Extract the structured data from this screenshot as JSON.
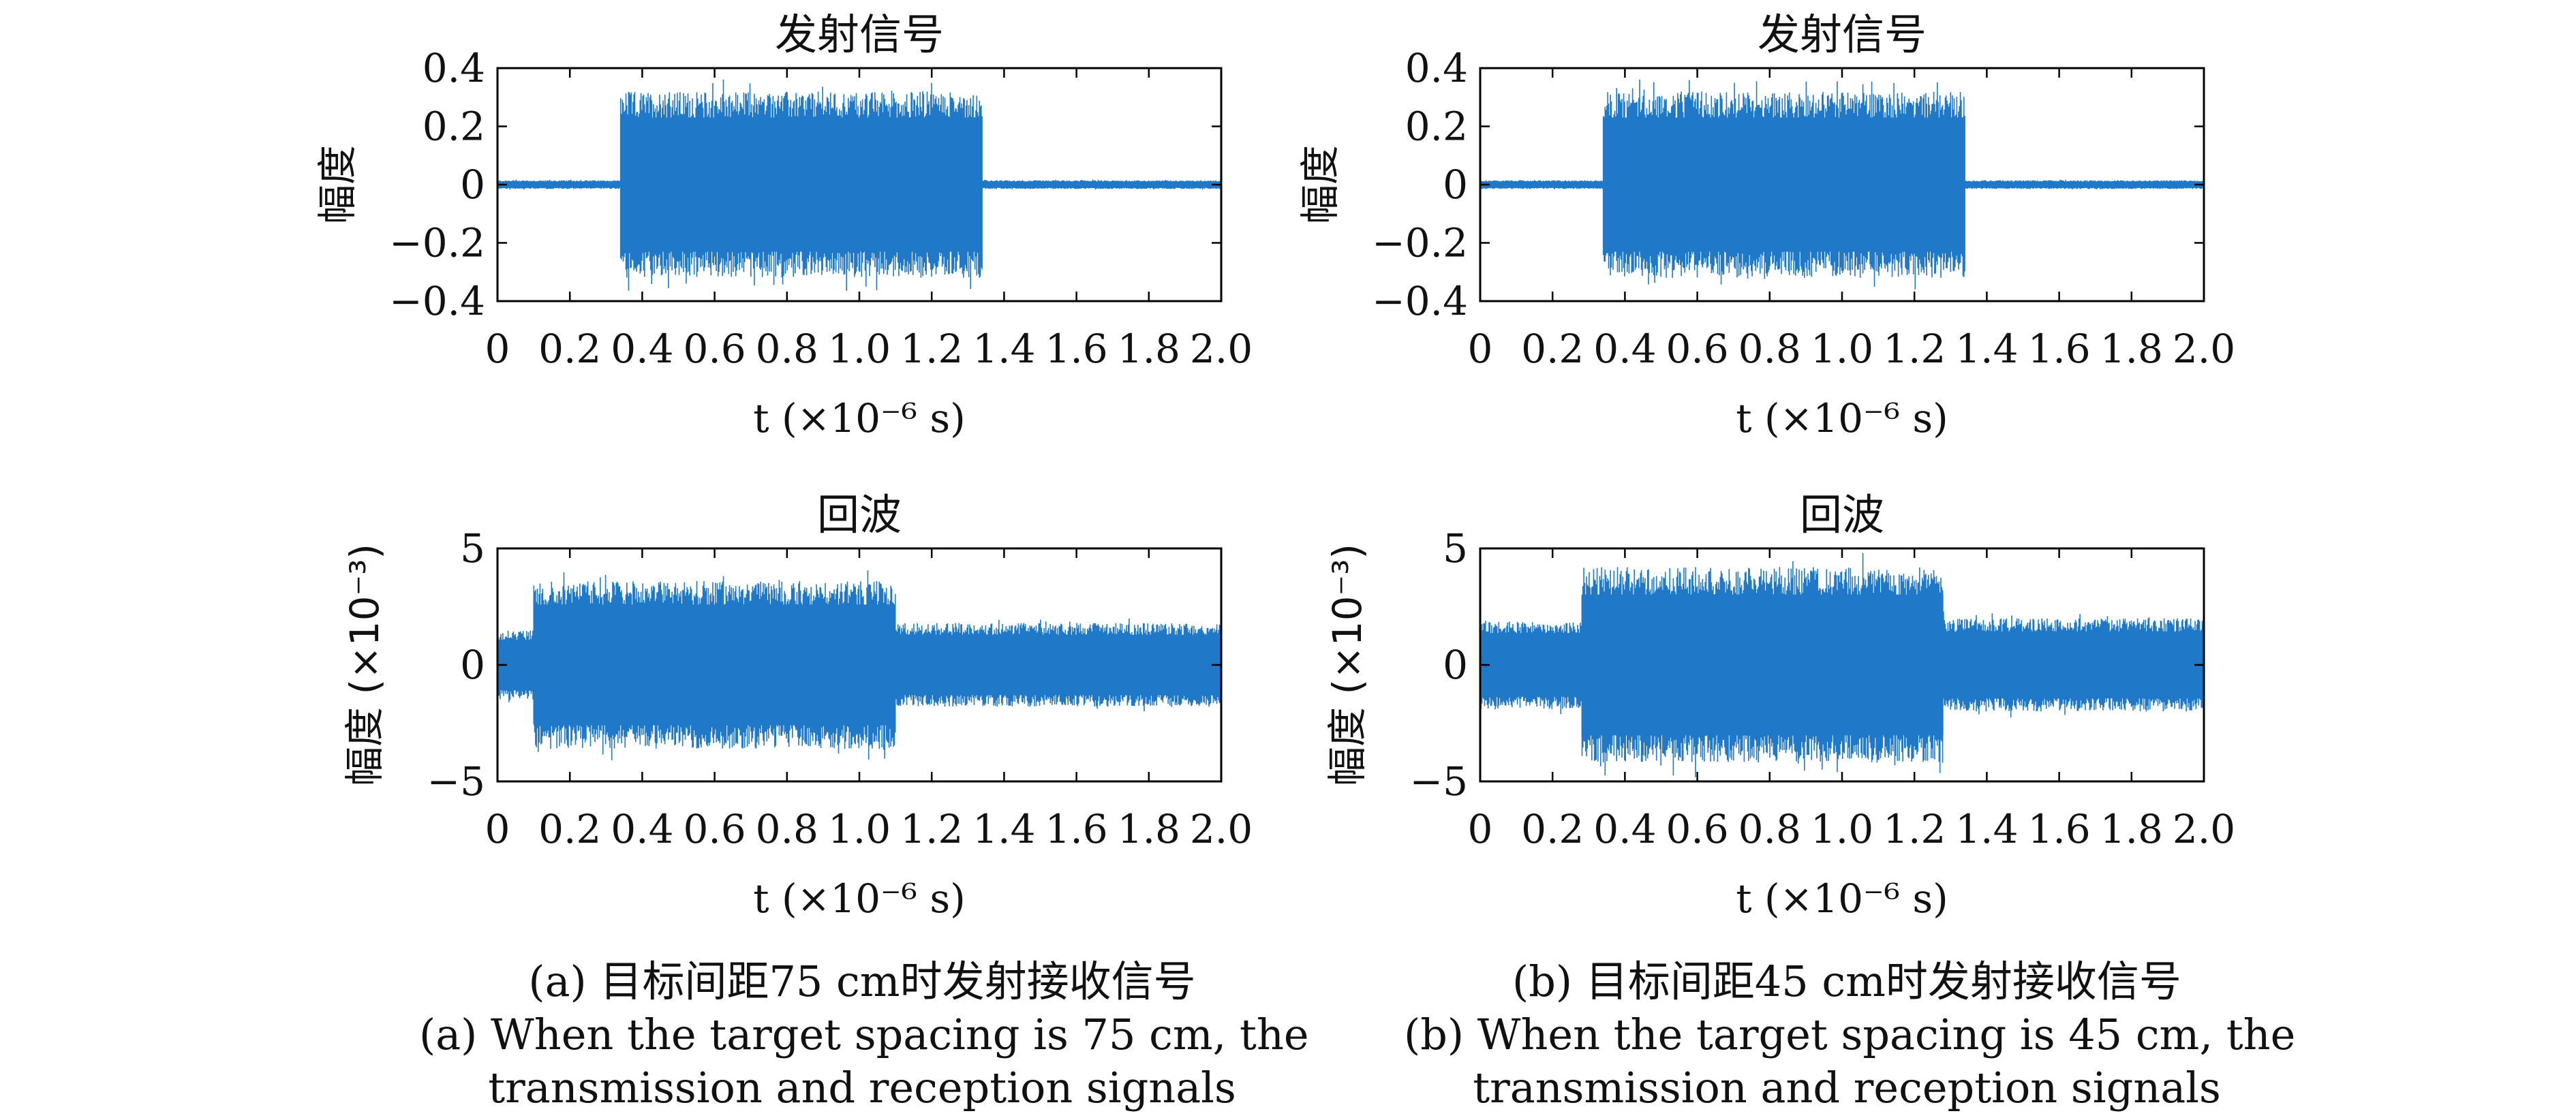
{
  "colors": {
    "signal": "#1f78c8",
    "axis": "#000000",
    "text": "#111111",
    "background": "#ffffff"
  },
  "chart_data": [
    {
      "panel": "a",
      "row": "top",
      "type": "line",
      "title": "发射信号",
      "ylabel": "幅度",
      "xlabel": "t (×10⁻⁶ s)",
      "xlim": [
        0,
        2.0
      ],
      "ylim": [
        -0.4,
        0.4
      ],
      "xticks": [
        "0",
        "0.2",
        "0.4",
        "0.6",
        "0.8",
        "1.0",
        "1.2",
        "1.4",
        "1.6",
        "1.8",
        "2.0"
      ],
      "yticks": [
        "0.4",
        "0.2",
        "0",
        "−0.2",
        "−0.4"
      ],
      "series": [
        {
          "envelope": [
            {
              "t_start": 0.0,
              "t_end": 0.34,
              "amplitude": 0.015
            },
            {
              "t_start": 0.34,
              "t_end": 1.34,
              "amplitude": 0.32
            },
            {
              "t_start": 1.34,
              "t_end": 2.0,
              "amplitude": 0.015
            }
          ]
        }
      ]
    },
    {
      "panel": "b",
      "row": "top",
      "type": "line",
      "title": "发射信号",
      "ylabel": "幅度",
      "xlabel": "t (×10⁻⁶ s)",
      "xlim": [
        0,
        2.0
      ],
      "ylim": [
        -0.4,
        0.4
      ],
      "xticks": [
        "0",
        "0.2",
        "0.4",
        "0.6",
        "0.8",
        "1.0",
        "1.2",
        "1.4",
        "1.6",
        "1.8",
        "2.0"
      ],
      "yticks": [
        "0.4",
        "0.2",
        "0",
        "−0.2",
        "−0.4"
      ],
      "series": [
        {
          "envelope": [
            {
              "t_start": 0.0,
              "t_end": 0.34,
              "amplitude": 0.015
            },
            {
              "t_start": 0.34,
              "t_end": 1.34,
              "amplitude": 0.32
            },
            {
              "t_start": 1.34,
              "t_end": 2.0,
              "amplitude": 0.015
            }
          ]
        }
      ]
    },
    {
      "panel": "a",
      "row": "bottom",
      "type": "line",
      "title": "回波",
      "ylabel": "幅度 (×10⁻³)",
      "xlabel": "t (×10⁻⁶ s)",
      "xlim": [
        0,
        2.0
      ],
      "ylim": [
        -5,
        5
      ],
      "xticks": [
        "0",
        "0.2",
        "0.4",
        "0.6",
        "0.8",
        "1.0",
        "1.2",
        "1.4",
        "1.6",
        "1.8",
        "2.0"
      ],
      "yticks": [
        "5",
        "0",
        "−5"
      ],
      "series": [
        {
          "envelope": [
            {
              "t_start": 0.0,
              "t_end": 0.1,
              "amplitude": 1.5
            },
            {
              "t_start": 0.1,
              "t_end": 1.1,
              "amplitude": 3.6
            },
            {
              "t_start": 1.1,
              "t_end": 2.0,
              "amplitude": 1.8
            }
          ]
        }
      ]
    },
    {
      "panel": "b",
      "row": "bottom",
      "type": "line",
      "title": "回波",
      "ylabel": "幅度 (×10⁻³)",
      "xlabel": "t (×10⁻⁶ s)",
      "xlim": [
        0,
        2.0
      ],
      "ylim": [
        -5,
        5
      ],
      "xticks": [
        "0",
        "0.2",
        "0.4",
        "0.6",
        "0.8",
        "1.0",
        "1.2",
        "1.4",
        "1.6",
        "1.8",
        "2.0"
      ],
      "yticks": [
        "5",
        "0",
        "−5"
      ],
      "series": [
        {
          "envelope": [
            {
              "t_start": 0.0,
              "t_end": 0.28,
              "amplitude": 1.9
            },
            {
              "t_start": 0.28,
              "t_end": 1.28,
              "amplitude": 4.2
            },
            {
              "t_start": 1.28,
              "t_end": 2.0,
              "amplitude": 2.0
            }
          ]
        }
      ]
    }
  ],
  "captions": {
    "a": {
      "zh": "(a) 目标间距75 cm时发射接收信号",
      "en1": "(a) When the target spacing is 75 cm, the",
      "en2": "transmission and reception signals"
    },
    "b": {
      "zh": "(b) 目标间距45 cm时发射接收信号",
      "en1": "(b) When the target spacing is 45 cm, the",
      "en2": "transmission and reception signals"
    }
  }
}
